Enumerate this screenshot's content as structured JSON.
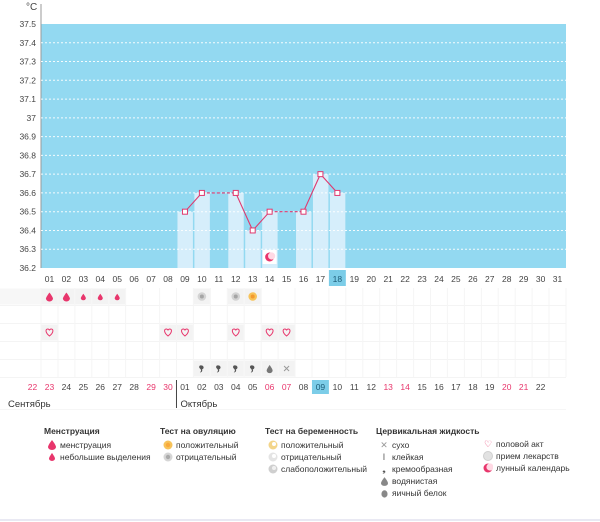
{
  "chart": {
    "unit": "°C",
    "y_ticks": [
      "37.5",
      "37.4",
      "37.3",
      "37.2",
      "37.1",
      "37",
      "36.9",
      "36.8",
      "36.7",
      "36.6",
      "36.5",
      "36.4",
      "36.3",
      "36.2"
    ],
    "x_days": [
      "01",
      "02",
      "03",
      "04",
      "05",
      "06",
      "07",
      "08",
      "09",
      "10",
      "11",
      "12",
      "13",
      "14",
      "15",
      "16",
      "17",
      "18",
      "19",
      "20",
      "21",
      "22",
      "23",
      "24",
      "25",
      "26",
      "27",
      "28",
      "29",
      "30",
      "31"
    ],
    "highlight_day": "18",
    "colors": {
      "plot_bg": "#93d9f1",
      "bar": "#d6eefb",
      "line": "#e0386e",
      "highlight": "#7ccde8"
    }
  },
  "chart_data": {
    "type": "line",
    "x": [
      9,
      10,
      12,
      13,
      14,
      16,
      17,
      18
    ],
    "y": [
      36.5,
      36.6,
      36.6,
      36.4,
      36.5,
      36.5,
      36.7,
      36.6
    ],
    "ylim": [
      36.2,
      37.5
    ]
  },
  "cal_prev": {
    "month": "Сентябрь",
    "days": [
      "22",
      "23",
      "24",
      "25",
      "26",
      "27",
      "28",
      "29",
      "30"
    ],
    "red_days": [
      "22",
      "23",
      "29",
      "30"
    ]
  },
  "cal_next": {
    "month": "Октябрь",
    "days": [
      "01",
      "02",
      "03",
      "04",
      "05",
      "06",
      "07",
      "08",
      "09",
      "10",
      "11",
      "12",
      "13",
      "14",
      "15",
      "16",
      "17",
      "18",
      "19",
      "20",
      "21",
      "22"
    ],
    "red_days": [
      "06",
      "07",
      "13",
      "14",
      "20",
      "21"
    ],
    "highlight_day": "09"
  },
  "legend": {
    "menstruation": {
      "title": "Менструация",
      "items": [
        "менструация",
        "небольшие выделения"
      ]
    },
    "ovulation": {
      "title": "Тест на овуляцию",
      "items": [
        "положительный",
        "отрицательный"
      ]
    },
    "pregnancy": {
      "title": "Тест на беременность",
      "items": [
        "положительный",
        "отрицательный",
        "слабоположительный"
      ]
    },
    "cervical": {
      "title": "Цервикальная жидкость",
      "items": [
        "сухо",
        "клейкая",
        "кремообразная",
        "водянистая",
        "яичный белок"
      ]
    },
    "other": {
      "items": [
        "половой акт",
        "прием лекарств",
        "лунный календарь"
      ]
    }
  }
}
